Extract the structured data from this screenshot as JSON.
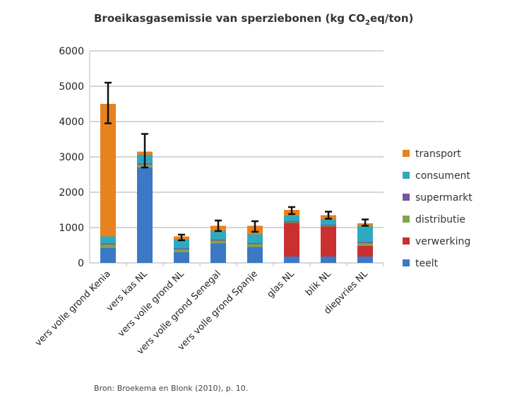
{
  "chart_data": {
    "type": "bar",
    "stacked": true,
    "title": "Broeikasgasemissie van sperziebonen (kg CO2eq/ton)",
    "title_parts": {
      "before": "Broeikasgasemissie van sperziebonen (kg CO",
      "sub": "2",
      "after": "eq/ton)"
    },
    "xlabel": "",
    "ylabel": "",
    "ylim": [
      0,
      6000
    ],
    "yticks": [
      0,
      1000,
      2000,
      3000,
      4000,
      5000,
      6000
    ],
    "grid": true,
    "legend_position": "right",
    "categories": [
      "vers volle grond Kenia",
      "vers kas NL",
      "vers volle grond NL",
      "vers volle grond Senegal",
      "vers volle grond Spanje",
      "glas NL",
      "blik NL",
      "diepvries NL"
    ],
    "series": [
      {
        "name": "teelt",
        "color": "#3b78c6",
        "values": [
          420,
          2700,
          300,
          550,
          450,
          180,
          180,
          180
        ]
      },
      {
        "name": "verwerking",
        "color": "#c9302f",
        "values": [
          0,
          0,
          0,
          0,
          0,
          950,
          850,
          300
        ]
      },
      {
        "name": "distributie",
        "color": "#7fa64a",
        "values": [
          100,
          80,
          80,
          80,
          80,
          20,
          20,
          80
        ]
      },
      {
        "name": "supermarkt",
        "color": "#7455a0",
        "values": [
          30,
          30,
          30,
          30,
          30,
          30,
          30,
          30
        ]
      },
      {
        "name": "consument",
        "color": "#2fa9c0",
        "values": [
          200,
          250,
          250,
          250,
          250,
          150,
          150,
          450
        ]
      },
      {
        "name": "transport",
        "color": "#e8821f",
        "values": [
          3750,
          90,
          90,
          140,
          240,
          170,
          120,
          80
        ]
      }
    ],
    "error_bars": [
      [
        3950,
        5100
      ],
      [
        2700,
        3650
      ],
      [
        640,
        800
      ],
      [
        900,
        1200
      ],
      [
        880,
        1180
      ],
      [
        1380,
        1580
      ],
      [
        1250,
        1450
      ],
      [
        1050,
        1230
      ]
    ],
    "source": "Bron: Broekema en Blonk (2010), p. 10."
  }
}
